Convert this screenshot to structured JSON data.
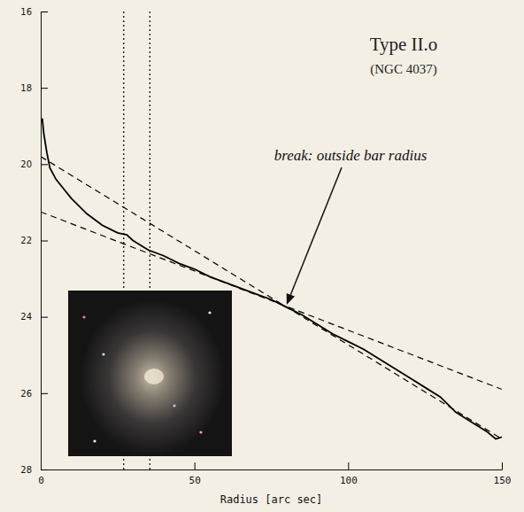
{
  "chart_data": {
    "type": "line",
    "title": "Type II.o",
    "subtitle": "(NGC 4037)",
    "x_label": "Radius [arc sec]",
    "x": [
      0.5,
      1,
      2,
      3,
      5,
      8,
      10,
      15,
      20,
      25,
      28,
      30,
      35,
      40,
      45,
      50,
      55,
      60,
      65,
      70,
      75,
      80,
      85,
      90,
      95,
      100,
      105,
      110,
      115,
      120,
      125,
      130,
      135,
      140,
      145,
      148,
      150
    ],
    "values": [
      18.8,
      19.2,
      19.7,
      20.1,
      20.4,
      20.7,
      20.9,
      21.3,
      21.6,
      21.8,
      21.85,
      22.0,
      22.25,
      22.4,
      22.6,
      22.75,
      22.95,
      23.1,
      23.25,
      23.4,
      23.55,
      23.75,
      23.95,
      24.2,
      24.45,
      24.65,
      24.85,
      25.1,
      25.35,
      25.6,
      25.85,
      26.1,
      26.5,
      26.75,
      27.0,
      27.2,
      27.15
    ],
    "color": "#000000",
    "line_style": "solid",
    "xlim": [
      0,
      150
    ],
    "xticks": [
      0,
      50,
      100,
      150
    ],
    "ylim": [
      28,
      16
    ],
    "yticks": [
      16,
      18,
      20,
      22,
      24,
      26,
      28
    ],
    "grid": false,
    "fits": [
      {
        "x": [
          0,
          150
        ],
        "values": [
          21.25,
          25.9
        ],
        "color": "#000000",
        "line_style": "dashed"
      },
      {
        "x": [
          0,
          150
        ],
        "values": [
          19.8,
          27.2
        ],
        "color": "#000000",
        "line_style": "dashed"
      }
    ],
    "reference_lines": {
      "x": [
        27,
        35.5
      ],
      "color": "#000000",
      "line_style": "dotted"
    },
    "annotations": [
      {
        "text": "break: outside bar radius",
        "x": 80,
        "y": 23.75
      }
    ]
  }
}
